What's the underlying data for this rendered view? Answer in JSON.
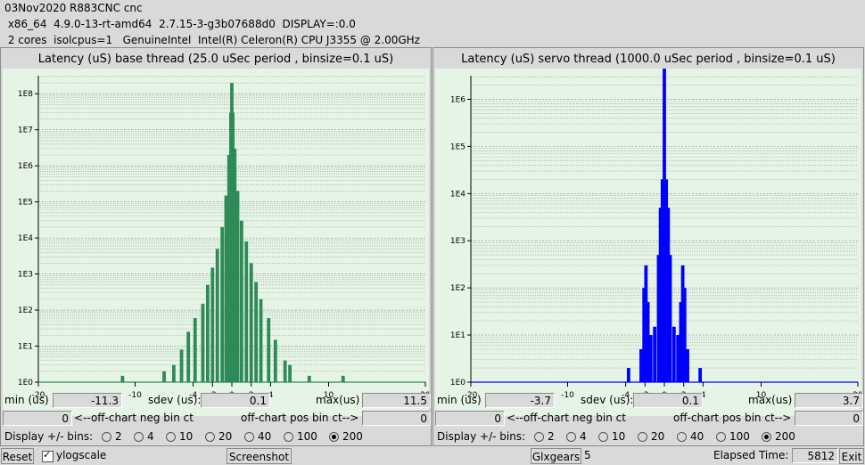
{
  "header": {
    "line1": "03Nov2020 R883CNC cnc",
    "line2": " x86_64  4.9.0-13-rt-amd64  2.7.15-3-g3b07688d0  DISPLAY=:0.0",
    "line3": " 2 cores  isolcpus=1   GenuineIntel  Intel(R) Celeron(R) CPU J3355 @ 2.00GHz"
  },
  "panels": [
    {
      "title": "Latency (uS) base thread (25.0 uSec period , binsize=0.1 uS)",
      "min_label": "min (us)",
      "min_value": "-11.3",
      "sdev_label": "sdev (us):",
      "sdev_value": "0.1",
      "max_label": "max(us)",
      "max_value": "11.5",
      "neg_value": "0",
      "neg_label": "<--off-chart neg bin ct",
      "pos_label": "off-chart pos bin ct-->",
      "pos_value": "0",
      "display_label": "Display +/- bins:",
      "bins": [
        "2",
        "4",
        "10",
        "20",
        "40",
        "100",
        "200"
      ],
      "selected_bin": "200"
    },
    {
      "title": "Latency (uS) servo thread (1000.0 uSec period , binsize=0.1 uS)",
      "min_label": "min (us)",
      "min_value": "-3.7",
      "sdev_label": "sdev (us):",
      "sdev_value": "0.1",
      "max_label": "max(us)",
      "max_value": "3.7",
      "neg_value": "0",
      "neg_label": "<--off-chart neg bin ct",
      "pos_label": "off-chart pos bin ct-->",
      "pos_value": "0",
      "display_label": "Display +/- bins:",
      "bins": [
        "2",
        "4",
        "10",
        "20",
        "40",
        "100",
        "200"
      ],
      "selected_bin": "200"
    }
  ],
  "chart_data": [
    {
      "type": "bar",
      "title": "Latency (uS) base thread (25.0 uSec period , binsize=0.1 uS)",
      "color": "#2e8b57",
      "log_y": true,
      "xlim": [
        -20,
        20
      ],
      "x_ticks": [
        "-20",
        "-10",
        "-4",
        "-2",
        "0",
        "2",
        "4",
        "10",
        "20"
      ],
      "y_ticks": [
        "1E0",
        "1E1",
        "1E2",
        "1E3",
        "1E4",
        "1E5",
        "1E6",
        "1E7",
        "1E8"
      ],
      "points": [
        {
          "x": -11.3,
          "y": 1.5
        },
        {
          "x": -7.0,
          "y": 2
        },
        {
          "x": -6.0,
          "y": 3
        },
        {
          "x": -5.2,
          "y": 8
        },
        {
          "x": -4.5,
          "y": 25
        },
        {
          "x": -3.8,
          "y": 60
        },
        {
          "x": -3.0,
          "y": 150
        },
        {
          "x": -2.5,
          "y": 500
        },
        {
          "x": -2.0,
          "y": 1500
        },
        {
          "x": -1.5,
          "y": 5000
        },
        {
          "x": -1.0,
          "y": 20000
        },
        {
          "x": -0.6,
          "y": 150000
        },
        {
          "x": -0.3,
          "y": 2000000
        },
        {
          "x": -0.1,
          "y": 30000000
        },
        {
          "x": 0.0,
          "y": 200000000
        },
        {
          "x": 0.1,
          "y": 30000000
        },
        {
          "x": 0.3,
          "y": 3000000
        },
        {
          "x": 0.6,
          "y": 200000
        },
        {
          "x": 1.0,
          "y": 30000
        },
        {
          "x": 1.5,
          "y": 8000
        },
        {
          "x": 2.0,
          "y": 2000
        },
        {
          "x": 2.5,
          "y": 600
        },
        {
          "x": 3.0,
          "y": 200
        },
        {
          "x": 3.8,
          "y": 60
        },
        {
          "x": 4.5,
          "y": 15
        },
        {
          "x": 5.5,
          "y": 4
        },
        {
          "x": 6.0,
          "y": 3
        },
        {
          "x": 8.0,
          "y": 1.5
        },
        {
          "x": 11.5,
          "y": 1.5
        }
      ]
    },
    {
      "type": "bar",
      "title": "Latency (uS) servo thread (1000.0 uSec period , binsize=0.1 uS)",
      "color": "#0000ff",
      "log_y": true,
      "xlim": [
        -20,
        20
      ],
      "x_ticks": [
        "-20",
        "-10",
        "-4",
        "-2",
        "0",
        "2",
        "4",
        "10",
        "20"
      ],
      "y_ticks": [
        "1E0",
        "1E1",
        "1E2",
        "1E3",
        "1E4",
        "1E5",
        "1E6"
      ],
      "points": [
        {
          "x": -3.7,
          "y": 2
        },
        {
          "x": -2.4,
          "y": 5
        },
        {
          "x": -2.1,
          "y": 100
        },
        {
          "x": -1.9,
          "y": 300
        },
        {
          "x": -1.7,
          "y": 50
        },
        {
          "x": -1.4,
          "y": 10
        },
        {
          "x": -1.0,
          "y": 15
        },
        {
          "x": -0.6,
          "y": 500
        },
        {
          "x": -0.4,
          "y": 5000
        },
        {
          "x": -0.2,
          "y": 20000
        },
        {
          "x": 0.0,
          "y": 5000000
        },
        {
          "x": 0.2,
          "y": 20000
        },
        {
          "x": 0.4,
          "y": 5000
        },
        {
          "x": 0.6,
          "y": 500
        },
        {
          "x": 1.0,
          "y": 15
        },
        {
          "x": 1.4,
          "y": 10
        },
        {
          "x": 1.7,
          "y": 50
        },
        {
          "x": 1.9,
          "y": 300
        },
        {
          "x": 2.1,
          "y": 100
        },
        {
          "x": 2.4,
          "y": 5
        },
        {
          "x": 3.7,
          "y": 2
        }
      ]
    }
  ],
  "bottom": {
    "reset_label": "Reset",
    "ylog_label": "ylogscale",
    "screenshot_label": "Screenshot",
    "glxgears_label": "Glxgears",
    "glxgears_value": "5",
    "elapsed_label": "Elapsed Time:",
    "elapsed_value": "5812",
    "exit_label": "Exit"
  }
}
